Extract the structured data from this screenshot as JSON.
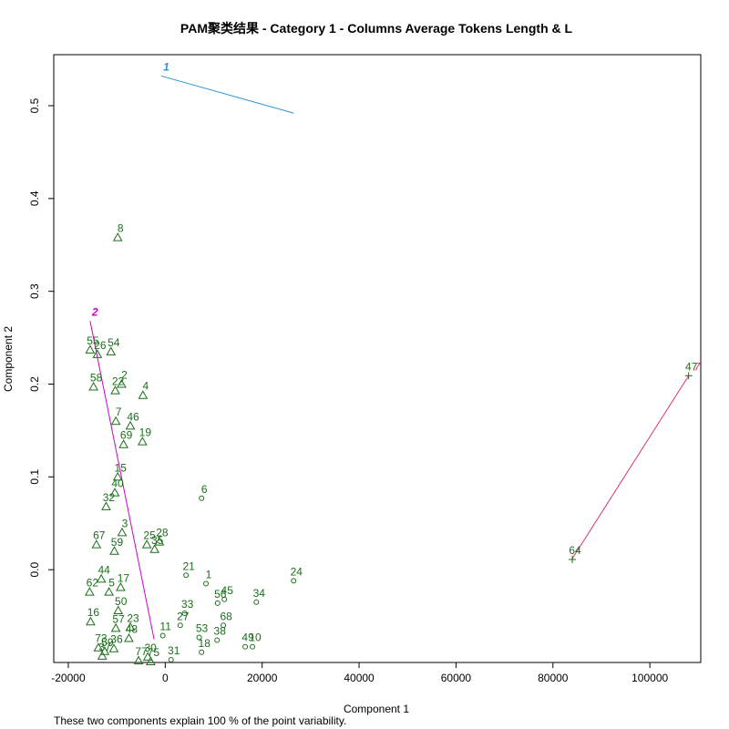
{
  "chart_data": {
    "type": "scatter",
    "title": "PAM聚类结果 - Category  1  - Columns  Average Tokens Length  &  L",
    "xlabel": "Component 1",
    "ylabel": "Component 2",
    "footnote": "These two components explain 100 % of the point variability.",
    "xlim": [
      -23000,
      110500
    ],
    "ylim": [
      -0.1,
      0.555
    ],
    "xticks": [
      -20000,
      0,
      20000,
      40000,
      60000,
      80000,
      100000
    ],
    "yticks": [
      0.0,
      0.1,
      0.2,
      0.3,
      0.4,
      0.5
    ],
    "colors": {
      "points": "#1a6e1a",
      "segment_1": "#2a93d5",
      "segment_2": "#cc00cc",
      "segment_3": "#dd3366",
      "label_1": "#2a93d5",
      "label_2": "#cc00cc",
      "label_3": "#dd3366"
    },
    "cluster_segments": [
      {
        "label": "1",
        "x1": -800,
        "y1": 0.532,
        "x2": 26500,
        "y2": 0.492,
        "color_key": "segment_1"
      },
      {
        "label": "2",
        "x1": -15500,
        "y1": 0.268,
        "x2": -2300,
        "y2": -0.075,
        "color_key": "segment_2"
      },
      {
        "label": "",
        "x1": 108000,
        "y1": 0.209,
        "x2": 84000,
        "y2": 0.012,
        "color_key": "segment_3"
      }
    ],
    "cluster_label_3": "7",
    "series": [
      {
        "marker": "triangle",
        "points": [
          {
            "label": "8",
            "x": -9800,
            "y": 0.358
          },
          {
            "label": "55",
            "x": -15500,
            "y": 0.237
          },
          {
            "label": "26",
            "x": -14000,
            "y": 0.232
          },
          {
            "label": "54",
            "x": -11200,
            "y": 0.235
          },
          {
            "label": "58",
            "x": -14800,
            "y": 0.197
          },
          {
            "label": "2",
            "x": -9000,
            "y": 0.2
          },
          {
            "label": "22",
            "x": -10300,
            "y": 0.193
          },
          {
            "label": "4",
            "x": -4600,
            "y": 0.188
          },
          {
            "label": "7",
            "x": -10200,
            "y": 0.16
          },
          {
            "label": "46",
            "x": -7200,
            "y": 0.155
          },
          {
            "label": "19",
            "x": -4700,
            "y": 0.138
          },
          {
            "label": "69",
            "x": -8600,
            "y": 0.135
          },
          {
            "label": "15",
            "x": -9800,
            "y": 0.1
          },
          {
            "label": "40",
            "x": -10400,
            "y": 0.083
          },
          {
            "label": "32",
            "x": -12200,
            "y": 0.068
          },
          {
            "label": "3",
            "x": -8900,
            "y": 0.04
          },
          {
            "label": "67",
            "x": -14200,
            "y": 0.027
          },
          {
            "label": "59",
            "x": -10500,
            "y": 0.02
          },
          {
            "label": "25",
            "x": -3800,
            "y": 0.027
          },
          {
            "label": "28",
            "x": -1200,
            "y": 0.03
          },
          {
            "label": "35",
            "x": -2200,
            "y": 0.022
          },
          {
            "label": "44",
            "x": -13200,
            "y": -0.01
          },
          {
            "label": "62",
            "x": -15600,
            "y": -0.024
          },
          {
            "label": "5",
            "x": -11600,
            "y": -0.024
          },
          {
            "label": "17",
            "x": -9200,
            "y": -0.019
          },
          {
            "label": "50",
            "x": -9700,
            "y": -0.044
          },
          {
            "label": "16",
            "x": -15400,
            "y": -0.056
          },
          {
            "label": "57",
            "x": -10200,
            "y": -0.063
          },
          {
            "label": "23",
            "x": -7200,
            "y": -0.062
          },
          {
            "label": "48",
            "x": -7500,
            "y": -0.074
          },
          {
            "label": "73",
            "x": -13800,
            "y": -0.084
          },
          {
            "label": "36",
            "x": -10600,
            "y": -0.085
          },
          {
            "label": "59b",
            "x": -12500,
            "y": -0.088
          },
          {
            "label": "37",
            "x": -13000,
            "y": -0.093
          },
          {
            "label": "30",
            "x": -3600,
            "y": -0.094
          },
          {
            "label": "77",
            "x": -5500,
            "y": -0.098
          },
          {
            "label": "75",
            "x": -3000,
            "y": -0.099
          }
        ]
      },
      {
        "marker": "circle",
        "points": [
          {
            "label": "6",
            "x": 7500,
            "y": 0.077
          },
          {
            "label": "21",
            "x": 4300,
            "y": -0.006
          },
          {
            "label": "1",
            "x": 8400,
            "y": -0.015
          },
          {
            "label": "24",
            "x": 26500,
            "y": -0.012
          },
          {
            "label": "33",
            "x": 4000,
            "y": -0.047
          },
          {
            "label": "56",
            "x": 10800,
            "y": -0.036
          },
          {
            "label": "45",
            "x": 12200,
            "y": -0.032
          },
          {
            "label": "34",
            "x": 18800,
            "y": -0.035
          },
          {
            "label": "27",
            "x": 3100,
            "y": -0.06
          },
          {
            "label": "11",
            "x": -500,
            "y": -0.071
          },
          {
            "label": "68",
            "x": 12000,
            "y": -0.06
          },
          {
            "label": "53",
            "x": 7000,
            "y": -0.073
          },
          {
            "label": "38",
            "x": 10700,
            "y": -0.076
          },
          {
            "label": "49",
            "x": 16500,
            "y": -0.083
          },
          {
            "label": "10",
            "x": 18000,
            "y": -0.083
          },
          {
            "label": "18",
            "x": 7500,
            "y": -0.089
          },
          {
            "label": "31",
            "x": 1200,
            "y": -0.097
          }
        ]
      },
      {
        "marker": "plus",
        "points": [
          {
            "label": "47",
            "x": 108000,
            "y": 0.209
          },
          {
            "label": "64",
            "x": 84000,
            "y": 0.011
          }
        ]
      }
    ]
  }
}
